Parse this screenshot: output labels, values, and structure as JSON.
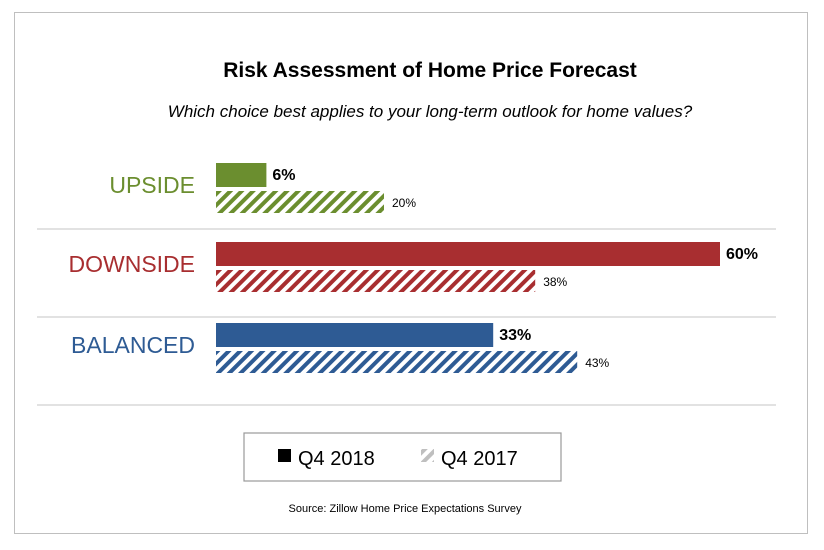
{
  "chart_data": {
    "type": "bar",
    "orientation": "horizontal",
    "title": "Risk Assessment of Home Price Forecast",
    "subtitle": "Which choice best applies to your long-term outlook for home values?",
    "categories": [
      "UPSIDE",
      "DOWNSIDE",
      "BALANCED"
    ],
    "category_colors": [
      "#6b8e2f",
      "#a82e30",
      "#2e5b94"
    ],
    "series": [
      {
        "name": "Q4 2018",
        "values": [
          6,
          60,
          33
        ],
        "labels": [
          "6%",
          "60%",
          "33%"
        ],
        "style": "solid"
      },
      {
        "name": "Q4 2017",
        "values": [
          20,
          38,
          43
        ],
        "labels": [
          "20%",
          "38%",
          "43%"
        ],
        "style": "hatched"
      }
    ],
    "xlim": [
      0,
      60
    ],
    "grid": false,
    "legend": "bottom",
    "source": "Source: Zillow Home Price Expectations Survey"
  },
  "colors": {
    "separator": "#d0d0d0",
    "legend_border": "#999999",
    "legend_solid": "#000000",
    "legend_hatch": "#bfbfbf"
  }
}
